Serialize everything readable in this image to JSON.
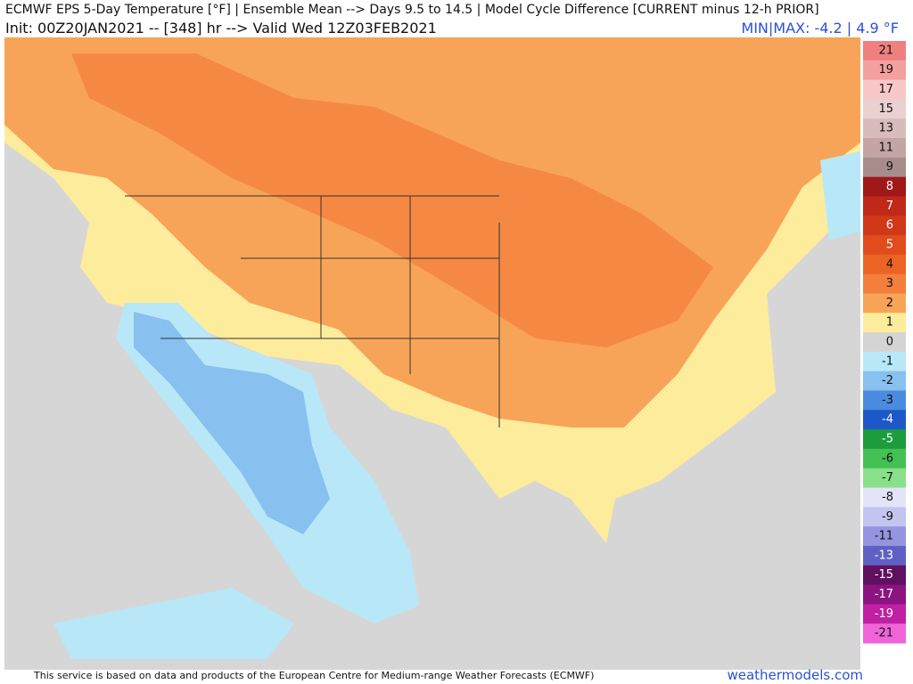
{
  "header": {
    "title": "ECMWF EPS 5-Day Temperature [°F] | Ensemble Mean --> Days 9.5 to 14.5 | Model Cycle Difference [CURRENT minus 12-h PRIOR]",
    "subtitle": "Init: 00Z20JAN2021 -- [348] hr --> Valid Wed 12Z03FEB2021",
    "minmax": "MIN|MAX: -4.2 | 4.9 °F"
  },
  "legend": {
    "items": [
      {
        "label": "21",
        "color": "#f08080"
      },
      {
        "label": "19",
        "color": "#f4a0a0"
      },
      {
        "label": "17",
        "color": "#f8c8c8"
      },
      {
        "label": "15",
        "color": "#ead0d0"
      },
      {
        "label": "13",
        "color": "#d8bcbc"
      },
      {
        "label": "11",
        "color": "#c4a4a4"
      },
      {
        "label": "9",
        "color": "#a88c8c"
      },
      {
        "label": "8",
        "color": "#a01818"
      },
      {
        "label": "7",
        "color": "#c02818"
      },
      {
        "label": "6",
        "color": "#d03818"
      },
      {
        "label": "5",
        "color": "#e04c1c"
      },
      {
        "label": "4",
        "color": "#ec6424"
      },
      {
        "label": "3",
        "color": "#f47e3c"
      },
      {
        "label": "2",
        "color": "#f8a458"
      },
      {
        "label": "1",
        "color": "#fcec9c"
      },
      {
        "label": "0",
        "color": "#d4d4d4"
      },
      {
        "label": "-1",
        "color": "#b8e8f8"
      },
      {
        "label": "-2",
        "color": "#88c0f0"
      },
      {
        "label": "-3",
        "color": "#4c8ce0"
      },
      {
        "label": "-4",
        "color": "#1c58c8"
      },
      {
        "label": "-5",
        "color": "#1c9c3c"
      },
      {
        "label": "-6",
        "color": "#44c054"
      },
      {
        "label": "-7",
        "color": "#88e088"
      },
      {
        "label": "-8",
        "color": "#e4e4f8"
      },
      {
        "label": "-9",
        "color": "#c4c4f0"
      },
      {
        "label": "-11",
        "color": "#9494e0"
      },
      {
        "label": "-13",
        "color": "#6060c4"
      },
      {
        "label": "-15",
        "color": "#601060"
      },
      {
        "label": "-17",
        "color": "#8c1480"
      },
      {
        "label": "-19",
        "color": "#c020a4"
      },
      {
        "label": "-21",
        "color": "#f064d8"
      }
    ]
  },
  "footer": {
    "credit": "This service is based on data and products of the European Centre for Medium-range Weather Forecasts (ECMWF)",
    "site": "weathermodels.com"
  }
}
